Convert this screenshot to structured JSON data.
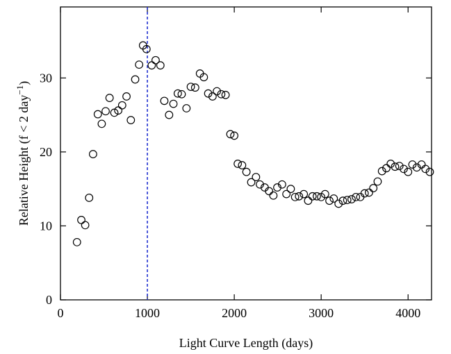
{
  "chart_data": {
    "type": "scatter",
    "title": "",
    "xlabel": "Light Curve Length (days)",
    "ylabel_main": "Relative Height (f < 2 day",
    "ylabel_sup": "−1",
    "ylabel_close": ")",
    "xlim": [
      0,
      4270
    ],
    "ylim": [
      0,
      39.6
    ],
    "xticks": [
      0,
      1000,
      2000,
      3000,
      4000
    ],
    "yticks": [
      0,
      10,
      20,
      30
    ],
    "xtick_labels": [
      "0",
      "1000",
      "2000",
      "3000",
      "4000"
    ],
    "ytick_labels": [
      "0",
      "10",
      "20",
      "30"
    ],
    "grid": false,
    "marker": "open-circle",
    "reference_line": {
      "x": 1000,
      "style": "dashed",
      "color": "#1f2fd0"
    },
    "series": [
      {
        "points": [
          [
            190,
            7.8
          ],
          [
            240,
            10.8
          ],
          [
            285,
            10.1
          ],
          [
            330,
            13.8
          ],
          [
            375,
            19.7
          ],
          [
            430,
            25.1
          ],
          [
            475,
            23.8
          ],
          [
            520,
            25.5
          ],
          [
            565,
            27.3
          ],
          [
            620,
            25.3
          ],
          [
            665,
            25.6
          ],
          [
            710,
            26.3
          ],
          [
            760,
            27.5
          ],
          [
            810,
            24.3
          ],
          [
            860,
            29.8
          ],
          [
            905,
            31.8
          ],
          [
            950,
            34.4
          ],
          [
            990,
            33.9
          ],
          [
            1050,
            31.7
          ],
          [
            1095,
            32.4
          ],
          [
            1150,
            31.7
          ],
          [
            1195,
            26.9
          ],
          [
            1250,
            25.0
          ],
          [
            1300,
            26.5
          ],
          [
            1350,
            27.9
          ],
          [
            1395,
            27.8
          ],
          [
            1450,
            25.9
          ],
          [
            1500,
            28.8
          ],
          [
            1550,
            28.7
          ],
          [
            1605,
            30.6
          ],
          [
            1650,
            30.1
          ],
          [
            1700,
            27.9
          ],
          [
            1750,
            27.5
          ],
          [
            1800,
            28.2
          ],
          [
            1850,
            27.8
          ],
          [
            1900,
            27.7
          ],
          [
            1955,
            22.4
          ],
          [
            2000,
            22.2
          ],
          [
            2040,
            18.4
          ],
          [
            2090,
            18.2
          ],
          [
            2140,
            17.3
          ],
          [
            2195,
            15.9
          ],
          [
            2250,
            16.6
          ],
          [
            2295,
            15.6
          ],
          [
            2350,
            15.2
          ],
          [
            2400,
            14.7
          ],
          [
            2450,
            14.1
          ],
          [
            2495,
            15.2
          ],
          [
            2550,
            15.6
          ],
          [
            2600,
            14.3
          ],
          [
            2650,
            15.0
          ],
          [
            2700,
            13.9
          ],
          [
            2745,
            14.0
          ],
          [
            2800,
            14.3
          ],
          [
            2850,
            13.4
          ],
          [
            2900,
            14.0
          ],
          [
            2950,
            14.0
          ],
          [
            3000,
            13.9
          ],
          [
            3045,
            14.3
          ],
          [
            3095,
            13.4
          ],
          [
            3145,
            13.7
          ],
          [
            3200,
            13.0
          ],
          [
            3250,
            13.4
          ],
          [
            3300,
            13.5
          ],
          [
            3350,
            13.6
          ],
          [
            3400,
            13.9
          ],
          [
            3450,
            13.9
          ],
          [
            3500,
            14.4
          ],
          [
            3550,
            14.5
          ],
          [
            3600,
            15.1
          ],
          [
            3650,
            16.0
          ],
          [
            3700,
            17.4
          ],
          [
            3750,
            17.8
          ],
          [
            3800,
            18.4
          ],
          [
            3850,
            18.0
          ],
          [
            3900,
            18.1
          ],
          [
            3950,
            17.7
          ],
          [
            4000,
            17.3
          ],
          [
            4050,
            18.3
          ],
          [
            4100,
            17.9
          ],
          [
            4155,
            18.3
          ],
          [
            4200,
            17.7
          ],
          [
            4250,
            17.3
          ]
        ]
      }
    ]
  }
}
